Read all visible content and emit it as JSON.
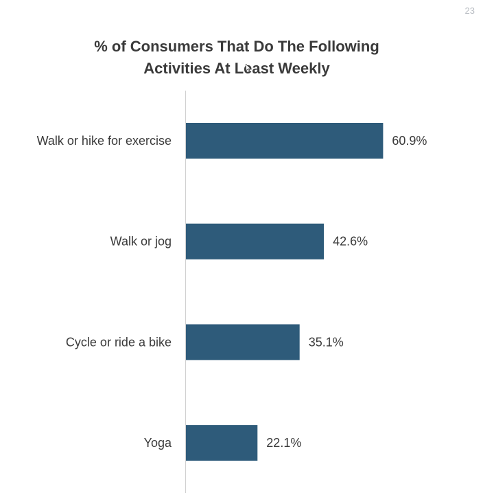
{
  "slide": {
    "page_number": "23"
  },
  "colors": {
    "bar": "#2e5b7a",
    "axis": "#d0d0d0",
    "text": "#3a3a3a"
  },
  "chart_data": {
    "type": "bar",
    "orientation": "horizontal",
    "title_lines": [
      "% of Consumers That Do The Following",
      "Activities At Least Weekly"
    ],
    "categories": [
      "Walk or hike for exercise",
      "Walk or jog",
      "Cycle  or ride a bike",
      "Yoga"
    ],
    "values": [
      60.9,
      42.6,
      35.1,
      22.1
    ],
    "value_labels": [
      "60.9%",
      "42.6%",
      "35.1%",
      "22.1%"
    ],
    "unit": "%",
    "xlim": [
      0,
      100
    ],
    "grid": false,
    "legend": "none"
  }
}
